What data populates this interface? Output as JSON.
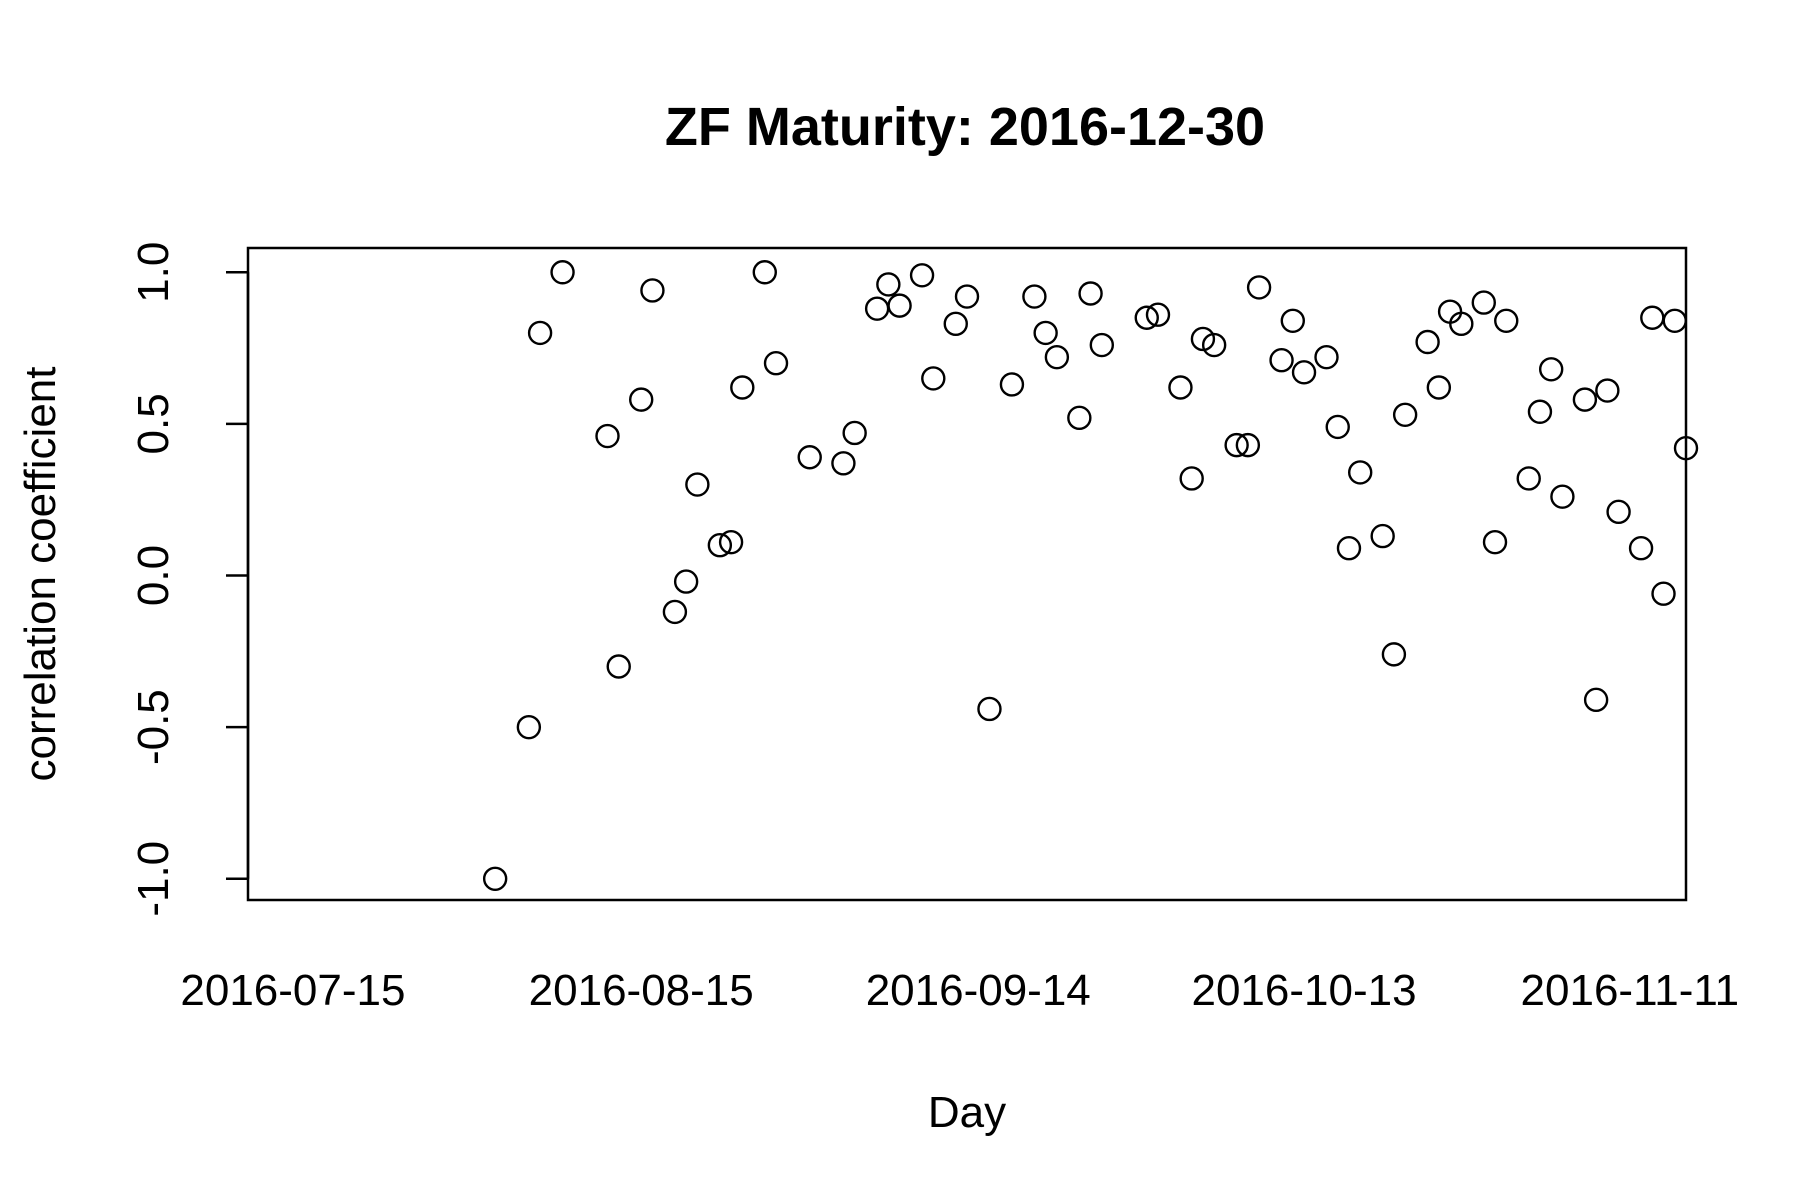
{
  "chart_data": {
    "type": "scatter",
    "title": "ZF Maturity: 2016-12-30",
    "xlabel": "Day",
    "ylabel": "correlation coefficient",
    "x_ticks": [
      "2016-07-15",
      "2016-08-15",
      "2016-09-14",
      "2016-10-13",
      "2016-11-11"
    ],
    "y_ticks": [
      "-1.0",
      "-0.5",
      "0.0",
      "0.5",
      "1.0"
    ],
    "xlim": [
      "2016-07-11",
      "2016-11-16"
    ],
    "ylim": [
      -1.07,
      1.08
    ],
    "grid": false,
    "legend": "none",
    "marker": "open-circle",
    "points": [
      {
        "x": "2016-08-02",
        "y": -1.0
      },
      {
        "x": "2016-08-05",
        "y": -0.5
      },
      {
        "x": "2016-08-06",
        "y": 0.8
      },
      {
        "x": "2016-08-08",
        "y": 1.0
      },
      {
        "x": "2016-08-12",
        "y": 0.46
      },
      {
        "x": "2016-08-13",
        "y": -0.3
      },
      {
        "x": "2016-08-15",
        "y": 0.58
      },
      {
        "x": "2016-08-16",
        "y": 0.94
      },
      {
        "x": "2016-08-18",
        "y": -0.12
      },
      {
        "x": "2016-08-19",
        "y": -0.02
      },
      {
        "x": "2016-08-20",
        "y": 0.3
      },
      {
        "x": "2016-08-22",
        "y": 0.1
      },
      {
        "x": "2016-08-23",
        "y": 0.11
      },
      {
        "x": "2016-08-24",
        "y": 0.62
      },
      {
        "x": "2016-08-26",
        "y": 1.0
      },
      {
        "x": "2016-08-27",
        "y": 0.7
      },
      {
        "x": "2016-08-30",
        "y": 0.39
      },
      {
        "x": "2016-09-02",
        "y": 0.37
      },
      {
        "x": "2016-09-03",
        "y": 0.47
      },
      {
        "x": "2016-09-05",
        "y": 0.88
      },
      {
        "x": "2016-09-06",
        "y": 0.96
      },
      {
        "x": "2016-09-07",
        "y": 0.89
      },
      {
        "x": "2016-09-09",
        "y": 0.99
      },
      {
        "x": "2016-09-10",
        "y": 0.65
      },
      {
        "x": "2016-09-12",
        "y": 0.83
      },
      {
        "x": "2016-09-13",
        "y": 0.92
      },
      {
        "x": "2016-09-15",
        "y": -0.44
      },
      {
        "x": "2016-09-17",
        "y": 0.63
      },
      {
        "x": "2016-09-19",
        "y": 0.92
      },
      {
        "x": "2016-09-20",
        "y": 0.8
      },
      {
        "x": "2016-09-21",
        "y": 0.72
      },
      {
        "x": "2016-09-23",
        "y": 0.52
      },
      {
        "x": "2016-09-24",
        "y": 0.93
      },
      {
        "x": "2016-09-25",
        "y": 0.76
      },
      {
        "x": "2016-09-29",
        "y": 0.85
      },
      {
        "x": "2016-09-30",
        "y": 0.86
      },
      {
        "x": "2016-10-02",
        "y": 0.62
      },
      {
        "x": "2016-10-03",
        "y": 0.32
      },
      {
        "x": "2016-10-04",
        "y": 0.78
      },
      {
        "x": "2016-10-05",
        "y": 0.76
      },
      {
        "x": "2016-10-07",
        "y": 0.43
      },
      {
        "x": "2016-10-08",
        "y": 0.43
      },
      {
        "x": "2016-10-09",
        "y": 0.95
      },
      {
        "x": "2016-10-11",
        "y": 0.71
      },
      {
        "x": "2016-10-12",
        "y": 0.84
      },
      {
        "x": "2016-10-13",
        "y": 0.67
      },
      {
        "x": "2016-10-15",
        "y": 0.72
      },
      {
        "x": "2016-10-16",
        "y": 0.49
      },
      {
        "x": "2016-10-17",
        "y": 0.09
      },
      {
        "x": "2016-10-18",
        "y": 0.34
      },
      {
        "x": "2016-10-20",
        "y": 0.13
      },
      {
        "x": "2016-10-21",
        "y": -0.26
      },
      {
        "x": "2016-10-22",
        "y": 0.53
      },
      {
        "x": "2016-10-24",
        "y": 0.77
      },
      {
        "x": "2016-10-25",
        "y": 0.62
      },
      {
        "x": "2016-10-26",
        "y": 0.87
      },
      {
        "x": "2016-10-27",
        "y": 0.83
      },
      {
        "x": "2016-10-29",
        "y": 0.9
      },
      {
        "x": "2016-10-30",
        "y": 0.11
      },
      {
        "x": "2016-10-31",
        "y": 0.84
      },
      {
        "x": "2016-11-02",
        "y": 0.32
      },
      {
        "x": "2016-11-03",
        "y": 0.54
      },
      {
        "x": "2016-11-04",
        "y": 0.68
      },
      {
        "x": "2016-11-05",
        "y": 0.26
      },
      {
        "x": "2016-11-07",
        "y": 0.58
      },
      {
        "x": "2016-11-08",
        "y": -0.41
      },
      {
        "x": "2016-11-09",
        "y": 0.61
      },
      {
        "x": "2016-11-10",
        "y": 0.21
      },
      {
        "x": "2016-11-12",
        "y": 0.09
      },
      {
        "x": "2016-11-13",
        "y": 0.85
      },
      {
        "x": "2016-11-14",
        "y": -0.06
      },
      {
        "x": "2016-11-15",
        "y": 0.84
      },
      {
        "x": "2016-11-16",
        "y": 0.42
      }
    ]
  }
}
